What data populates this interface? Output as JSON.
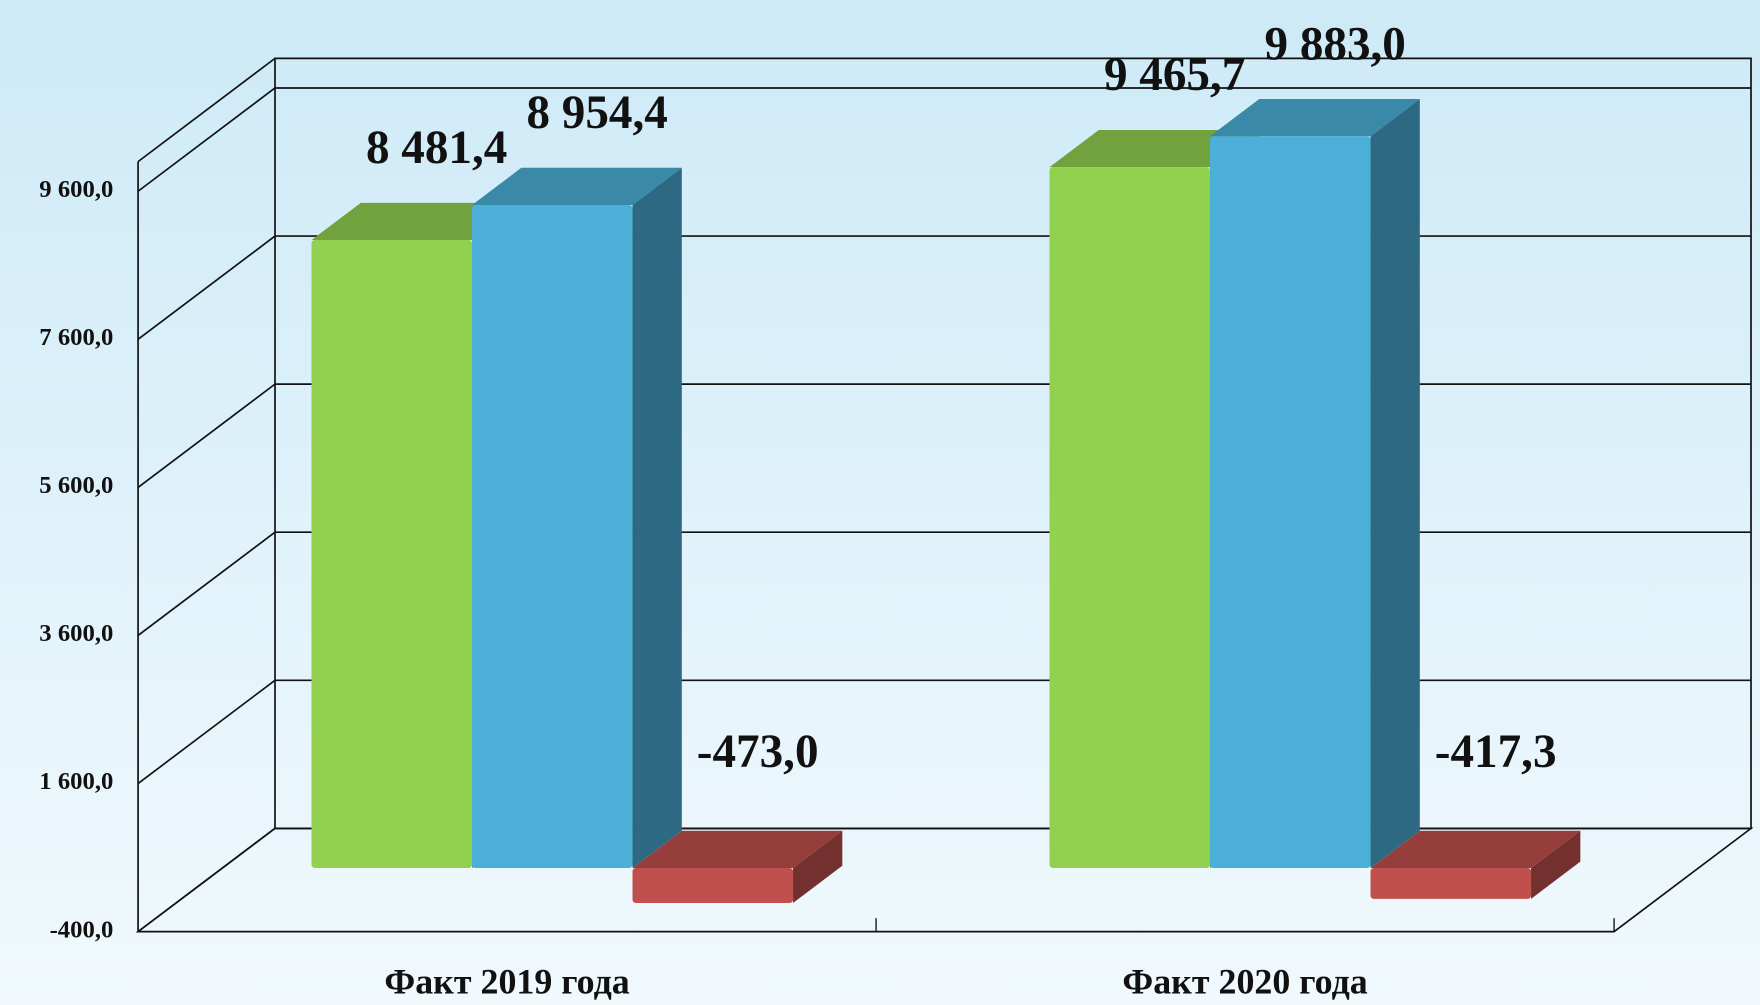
{
  "chart_data": {
    "type": "bar",
    "categories": [
      "Факт 2019 года",
      "Факт 2020 года"
    ],
    "series": [
      {
        "color": "#92d050",
        "values": [
          8481.4,
          9465.7
        ],
        "value_labels": [
          "8 481,4",
          "9 465,7"
        ]
      },
      {
        "color": "#4bafd8",
        "values": [
          8954.4,
          9883.0
        ],
        "value_labels": [
          "8 954,4",
          "9 883,0"
        ]
      },
      {
        "color": "#c0504d",
        "values": [
          -473.0,
          -417.3
        ],
        "value_labels": [
          "-473,0",
          "-417,3"
        ]
      }
    ],
    "ylim": [
      -400,
      10000
    ],
    "yticks": [
      {
        "value": -400,
        "label": "-400,0"
      },
      {
        "value": 1600,
        "label": "1 600,0"
      },
      {
        "value": 3600,
        "label": "3 600,0"
      },
      {
        "value": 5600,
        "label": "5 600,0"
      },
      {
        "value": 7600,
        "label": "7 600,0"
      },
      {
        "value": 9600,
        "label": "9 600,0"
      }
    ],
    "grid": true
  }
}
